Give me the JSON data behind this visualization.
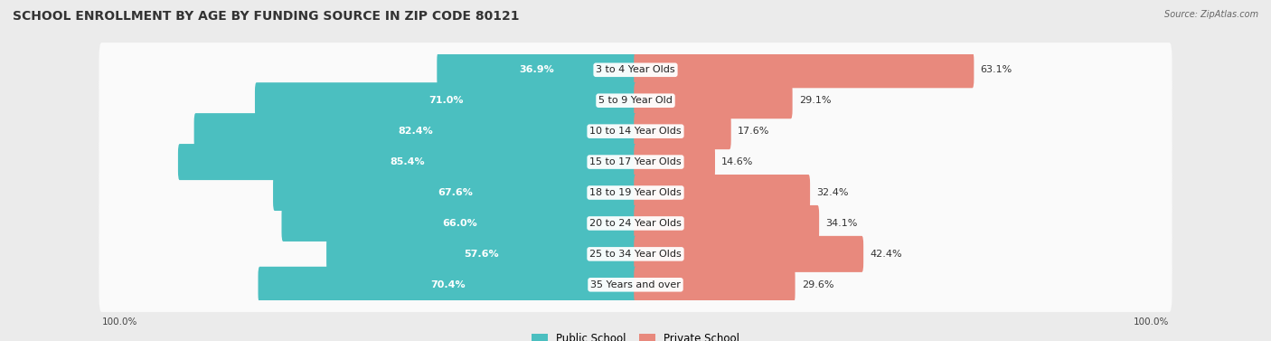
{
  "title": "SCHOOL ENROLLMENT BY AGE BY FUNDING SOURCE IN ZIP CODE 80121",
  "source": "Source: ZipAtlas.com",
  "categories": [
    "3 to 4 Year Olds",
    "5 to 9 Year Old",
    "10 to 14 Year Olds",
    "15 to 17 Year Olds",
    "18 to 19 Year Olds",
    "20 to 24 Year Olds",
    "25 to 34 Year Olds",
    "35 Years and over"
  ],
  "public_values": [
    36.9,
    71.0,
    82.4,
    85.4,
    67.6,
    66.0,
    57.6,
    70.4
  ],
  "private_values": [
    63.1,
    29.1,
    17.6,
    14.6,
    32.4,
    34.1,
    42.4,
    29.6
  ],
  "public_color": "#4BBFC0",
  "private_color": "#E8897D",
  "bg_color": "#EBEBEB",
  "row_bg_color": "#FAFAFA",
  "row_alt_color": "#F0F0F0",
  "title_fontsize": 10,
  "label_fontsize": 8,
  "value_fontsize": 8,
  "figsize": [
    14.06,
    3.77
  ],
  "dpi": 100
}
